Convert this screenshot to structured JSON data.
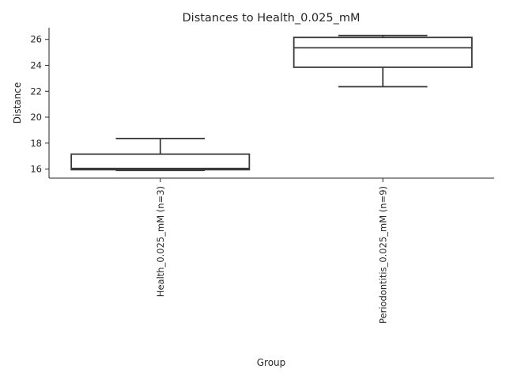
{
  "chart_data": {
    "type": "box",
    "title": "Distances to Health_0.025_mM",
    "xlabel": "Group",
    "ylabel": "Distance",
    "ylim": [
      15.3,
      26.9
    ],
    "yticks": [
      16,
      18,
      20,
      22,
      24,
      26
    ],
    "grid": false,
    "legend": "none",
    "categories": [
      "Health_0.025_mM (n=3)",
      "Periodontitis_0.025_mM (n=9)"
    ],
    "boxes": [
      {
        "category": "Health_0.025_mM (n=3)",
        "whisker_low": 15.9,
        "q1": 15.95,
        "median": 16.05,
        "q3": 17.15,
        "whisker_high": 18.35
      },
      {
        "category": "Periodontitis_0.025_mM (n=9)",
        "whisker_low": 22.35,
        "q1": 23.85,
        "median": 25.35,
        "q3": 26.15,
        "whisker_high": 26.3
      }
    ],
    "colors": {
      "box_edge": "#3a3a3a",
      "box_fill": "#ffffff",
      "text": "#262626"
    }
  }
}
